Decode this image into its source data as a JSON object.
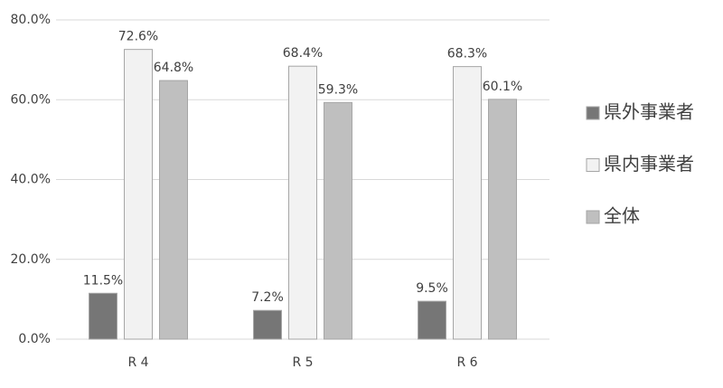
{
  "chart_data": {
    "type": "bar",
    "categories": [
      "R 4",
      "R 5",
      "R 6"
    ],
    "series": [
      {
        "name": "県外事業者",
        "color": "#767676",
        "values": [
          11.5,
          7.2,
          9.5
        ],
        "value_labels": [
          "11.5%",
          "7.2%",
          "9.5%"
        ]
      },
      {
        "name": "県内事業者",
        "color": "#f2f2f2",
        "values": [
          72.6,
          68.4,
          68.3
        ],
        "value_labels": [
          "72.6%",
          "68.4%",
          "68.3%"
        ]
      },
      {
        "name": "全体",
        "color": "#bfbfbf",
        "values": [
          64.8,
          59.3,
          60.1
        ],
        "value_labels": [
          "64.8%",
          "59.3%",
          "60.1%"
        ]
      }
    ],
    "edgecolor": "#a6a6a6",
    "ylim": [
      0,
      80
    ],
    "yticks": [
      {
        "value": 0,
        "label": "0.0%"
      },
      {
        "value": 20,
        "label": "20.0%"
      },
      {
        "value": 40,
        "label": "40.0%"
      },
      {
        "value": 60,
        "label": "60.0%"
      },
      {
        "value": 80,
        "label": "80.0%"
      }
    ],
    "grid": true,
    "legend": "right"
  }
}
